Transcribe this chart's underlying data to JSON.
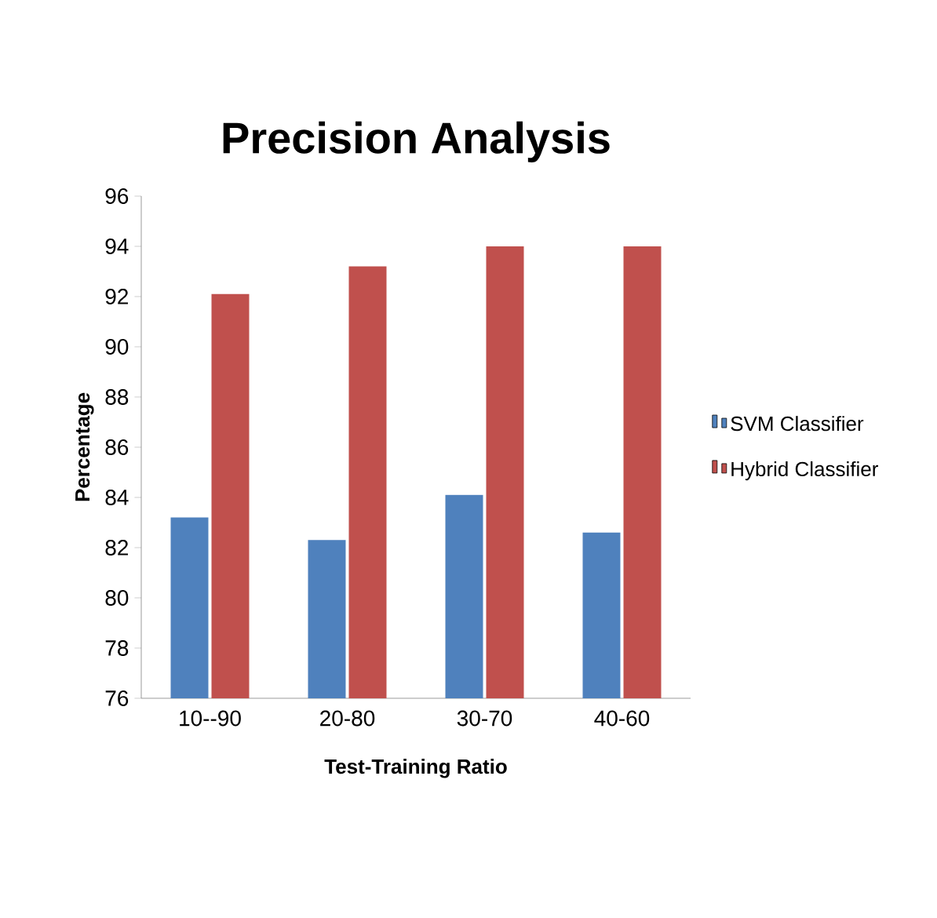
{
  "chart_data": {
    "type": "bar",
    "title": "Precision Analysis",
    "xlabel": "Test-Training Ratio",
    "ylabel": "Percentage",
    "categories": [
      "10--90",
      "20-80",
      "30-70",
      "40-60"
    ],
    "series": [
      {
        "name": "SVM Classifier",
        "color": "#4f81bd",
        "values": [
          83.2,
          82.3,
          84.1,
          82.6
        ]
      },
      {
        "name": "Hybrid Classifier",
        "color": "#c0504d",
        "values": [
          92.1,
          93.2,
          94.0,
          94.0
        ]
      }
    ],
    "ylim": [
      76,
      96
    ],
    "yticks": [
      76,
      78,
      80,
      82,
      84,
      86,
      88,
      90,
      92,
      94,
      96
    ],
    "grid": false,
    "legend": "right"
  }
}
